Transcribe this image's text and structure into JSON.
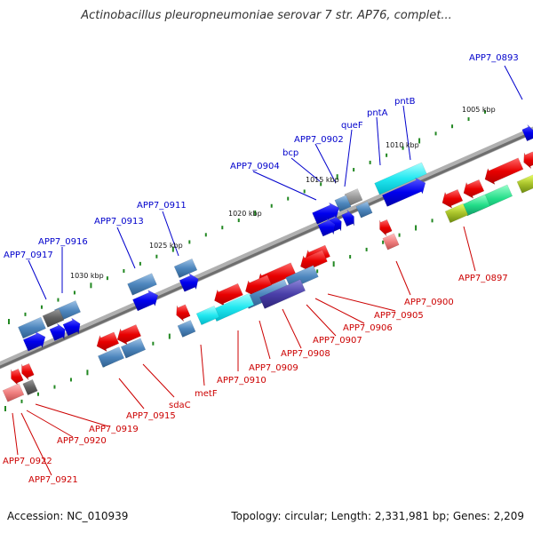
{
  "title": "Actinobacillus pleuropneumoniae serovar 7 str. AP76, complet...",
  "footer": {
    "accession": "Accession: NC_010939",
    "summary": "Topology: circular; Length: 2,331,981 bp; Genes: 2,209"
  },
  "colors": {
    "forward_label": "#0000cc",
    "reverse_label": "#cc0000",
    "backbone": "#8a8a8a",
    "tick": "#228822"
  },
  "kbp_ticks": [
    "1005 kbp",
    "1010 kbp",
    "1015 kbp",
    "1020 kbp",
    "1025 kbp",
    "1030 kbp"
  ],
  "labels_forward": [
    "APP7_0893",
    "pntB",
    "pntA",
    "queF",
    "APP7_0902",
    "bcp",
    "APP7_0904",
    "APP7_0911",
    "APP7_0913",
    "APP7_0916",
    "APP7_0917"
  ],
  "labels_reverse": [
    "APP7_0897",
    "APP7_0900",
    "APP7_0905",
    "APP7_0906",
    "APP7_0907",
    "APP7_0908",
    "APP7_0909",
    "APP7_0910",
    "metF",
    "sdaC",
    "APP7_0915",
    "APP7_0919",
    "APP7_0920",
    "APP7_0922",
    "APP7_0921"
  ]
}
